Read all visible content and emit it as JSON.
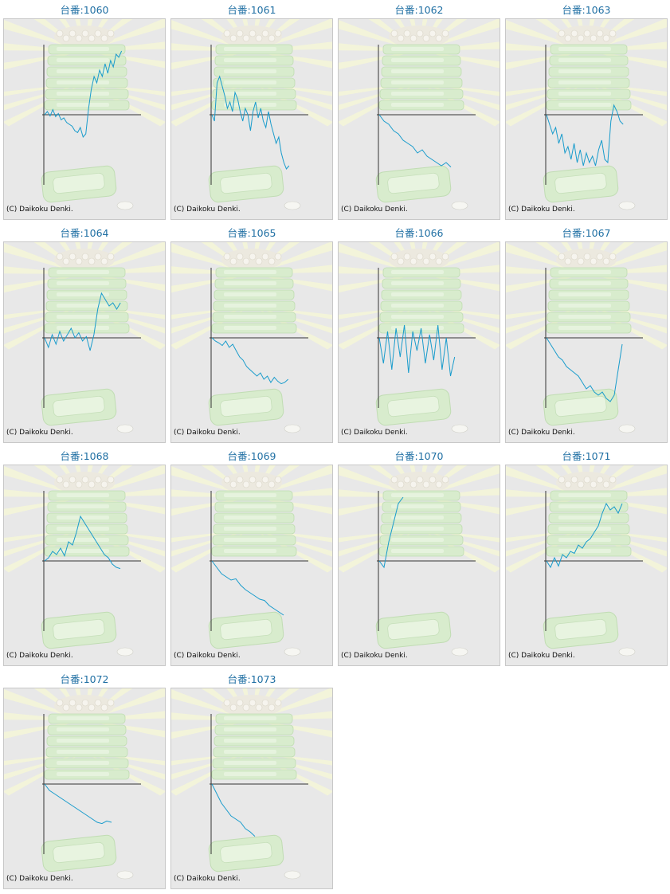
{
  "colors": {
    "title": "#1f6fa3",
    "line": "#1a9ccc",
    "axis": "#333333",
    "panel_bg": "#e8e8e8"
  },
  "copyright": "(C) Daikoku Denki.",
  "machines": [
    {
      "title": "台番:1060",
      "chart_data": {
        "type": "line",
        "values": [
          0,
          0.05,
          -0.02,
          0.08,
          -0.03,
          0.02,
          -0.08,
          -0.05,
          -0.12,
          -0.15,
          -0.18,
          -0.25,
          -0.28,
          -0.2,
          -0.35,
          -0.3,
          0.1,
          0.4,
          0.6,
          0.5,
          0.7,
          0.6,
          0.8,
          0.65,
          0.85,
          0.75,
          0.95,
          0.9,
          1.0
        ]
      }
    },
    {
      "title": "台番:1061",
      "chart_data": {
        "type": "line",
        "values": [
          0,
          -0.1,
          0.5,
          0.6,
          0.45,
          0.3,
          0.1,
          0.2,
          0.05,
          0.35,
          0.25,
          0.05,
          -0.1,
          0.1,
          0,
          -0.25,
          0.05,
          0.2,
          -0.05,
          0.1,
          -0.1,
          -0.2,
          0.05,
          -0.15,
          -0.3,
          -0.45,
          -0.35,
          -0.6,
          -0.75,
          -0.85,
          -0.8
        ]
      }
    },
    {
      "title": "台番:1062",
      "chart_data": {
        "type": "line",
        "values": [
          0,
          -0.1,
          -0.15,
          -0.25,
          -0.3,
          -0.4,
          -0.45,
          -0.5,
          -0.6,
          -0.55,
          -0.65,
          -0.7,
          -0.75,
          -0.8,
          -0.75,
          -0.82
        ]
      }
    },
    {
      "title": "台番:1063",
      "chart_data": {
        "type": "line",
        "values": [
          0,
          -0.15,
          -0.3,
          -0.2,
          -0.45,
          -0.3,
          -0.6,
          -0.5,
          -0.7,
          -0.45,
          -0.75,
          -0.55,
          -0.8,
          -0.6,
          -0.75,
          -0.65,
          -0.8,
          -0.55,
          -0.4,
          -0.7,
          -0.75,
          -0.1,
          0.15,
          0.05,
          -0.1,
          -0.15
        ]
      }
    },
    {
      "title": "台番:1064",
      "chart_data": {
        "type": "line",
        "values": [
          0,
          -0.15,
          0.05,
          -0.1,
          0.1,
          -0.05,
          0.05,
          0.15,
          0,
          0.08,
          -0.05,
          0.02,
          -0.2,
          0.05,
          0.45,
          0.7,
          0.6,
          0.5,
          0.55,
          0.45,
          0.55
        ]
      }
    },
    {
      "title": "台番:1065",
      "chart_data": {
        "type": "line",
        "values": [
          0,
          -0.05,
          -0.08,
          -0.12,
          -0.05,
          -0.15,
          -0.1,
          -0.2,
          -0.3,
          -0.35,
          -0.45,
          -0.5,
          -0.55,
          -0.6,
          -0.55,
          -0.65,
          -0.6,
          -0.7,
          -0.62,
          -0.68,
          -0.72,
          -0.7,
          -0.65
        ]
      }
    },
    {
      "title": "台番:1066",
      "chart_data": {
        "type": "line",
        "values": [
          0,
          -0.4,
          0.1,
          -0.5,
          0.15,
          -0.3,
          0.2,
          -0.55,
          0.1,
          -0.2,
          0.15,
          -0.4,
          0.05,
          -0.35,
          0.2,
          -0.5,
          0,
          -0.6,
          -0.3
        ]
      }
    },
    {
      "title": "台番:1067",
      "chart_data": {
        "type": "line",
        "values": [
          0,
          -0.1,
          -0.2,
          -0.3,
          -0.35,
          -0.45,
          -0.5,
          -0.55,
          -0.6,
          -0.7,
          -0.8,
          -0.75,
          -0.85,
          -0.9,
          -0.85,
          -0.95,
          -1.0,
          -0.9,
          -0.5,
          -0.1
        ]
      }
    },
    {
      "title": "台番:1068",
      "chart_data": {
        "type": "line",
        "values": [
          0,
          0.05,
          0.15,
          0.1,
          0.2,
          0.08,
          0.3,
          0.25,
          0.45,
          0.7,
          0.6,
          0.5,
          0.4,
          0.3,
          0.2,
          0.1,
          0.05,
          -0.05,
          -0.1,
          -0.12
        ]
      }
    },
    {
      "title": "台番:1069",
      "chart_data": {
        "type": "line",
        "values": [
          0,
          -0.1,
          -0.2,
          -0.25,
          -0.3,
          -0.28,
          -0.38,
          -0.45,
          -0.5,
          -0.55,
          -0.6,
          -0.62,
          -0.7,
          -0.75,
          -0.8,
          -0.85
        ]
      }
    },
    {
      "title": "台番:1070",
      "chart_data": {
        "type": "line",
        "values": [
          0,
          -0.1,
          0.3,
          0.6,
          0.9,
          1.0
        ]
      }
    },
    {
      "title": "台番:1071",
      "chart_data": {
        "type": "line",
        "values": [
          0,
          -0.1,
          0.05,
          -0.08,
          0.1,
          0.05,
          0.15,
          0.12,
          0.25,
          0.2,
          0.3,
          0.35,
          0.45,
          0.55,
          0.75,
          0.9,
          0.8,
          0.85,
          0.75,
          0.9
        ]
      }
    },
    {
      "title": "台番:1072",
      "chart_data": {
        "type": "line",
        "values": [
          0,
          -0.1,
          -0.15,
          -0.2,
          -0.25,
          -0.3,
          -0.35,
          -0.4,
          -0.45,
          -0.5,
          -0.55,
          -0.6,
          -0.62,
          -0.58,
          -0.6
        ]
      }
    },
    {
      "title": "台番:1073",
      "chart_data": {
        "type": "line",
        "values": [
          0,
          -0.15,
          -0.3,
          -0.4,
          -0.5,
          -0.55,
          -0.6,
          -0.7,
          -0.75,
          -0.82
        ]
      }
    }
  ]
}
